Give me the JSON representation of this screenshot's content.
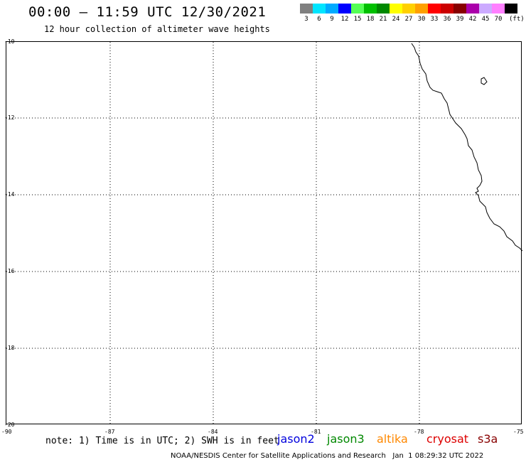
{
  "title": "00:00 – 11:59 UTC 12/30/2021",
  "subtitle": "12 hour collection of altimeter wave heights",
  "legend": {
    "colors": [
      "#808080",
      "#00e5ff",
      "#00aaff",
      "#0000ff",
      "#55ff55",
      "#00c000",
      "#008800",
      "#ffff00",
      "#ffd000",
      "#ffa000",
      "#ff0000",
      "#cc0000",
      "#880000",
      "#aa00aa",
      "#ccaaff",
      "#ff80ff",
      "#000000"
    ],
    "labels": [
      "3",
      "6",
      "9",
      "12",
      "15",
      "18",
      "21",
      "24",
      "27",
      "30",
      "33",
      "36",
      "39",
      "42",
      "45",
      "70"
    ],
    "unit": "(ft)"
  },
  "map": {
    "lat_labels": [
      "-10",
      "-12",
      "-14",
      "-16",
      "-18",
      "-20"
    ],
    "lon_labels": [
      "-90",
      "-87",
      "-84",
      "-81",
      "-78",
      "-75"
    ]
  },
  "note": "note: 1) Time is in UTC; 2) SWH is in feet",
  "satellites": [
    {
      "name": "jason2",
      "color": "#0000dd"
    },
    {
      "name": "jason3",
      "color": "#008800"
    },
    {
      "name": "altika",
      "color": "#ff8800"
    },
    {
      "name": "cryosat",
      "color": "#dd0000"
    },
    {
      "name": "s3a",
      "color": "#880000"
    }
  ],
  "footer": "NOAA/NESDIS Center for Satellite Applications and Research   Jan  1 08:29:32 UTC 2022"
}
